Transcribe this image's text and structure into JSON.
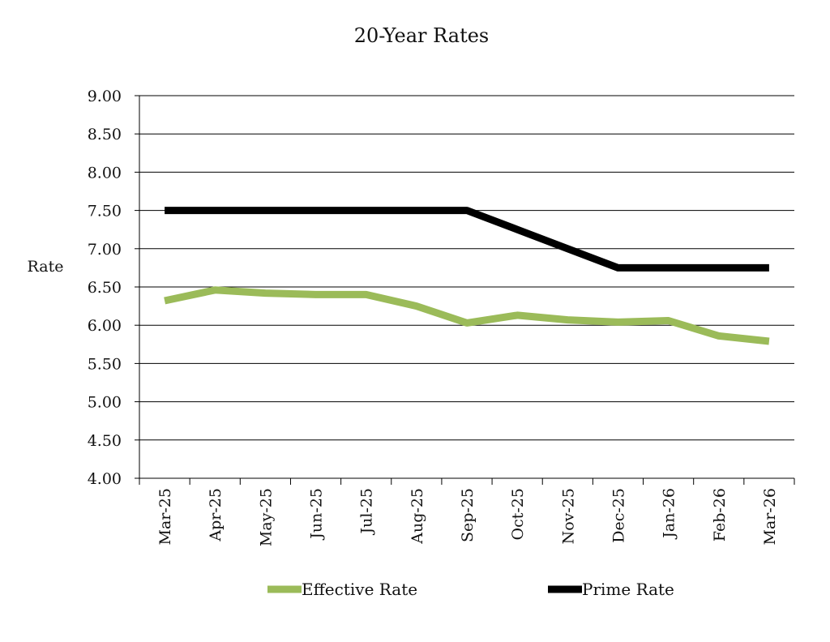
{
  "chart_data": {
    "type": "line",
    "title": "20-Year Rates",
    "ylabel": "Rate",
    "xlabel": "",
    "categories": [
      "Mar-25",
      "Apr-25",
      "May-25",
      "Jun-25",
      "Jul-25",
      "Aug-25",
      "Sep-25",
      "Oct-25",
      "Nov-25",
      "Dec-25",
      "Jan-26",
      "Feb-26",
      "Mar-26"
    ],
    "ylim": [
      4.0,
      9.0
    ],
    "yticks": [
      "4.00",
      "4.50",
      "5.00",
      "5.50",
      "6.00",
      "6.50",
      "7.00",
      "7.50",
      "8.00",
      "8.50",
      "9.00"
    ],
    "grid": true,
    "legend_position": "bottom",
    "series": [
      {
        "name": "Effective Rate",
        "color": "#9bbb59",
        "values": [
          6.32,
          6.46,
          6.42,
          6.4,
          6.4,
          6.25,
          6.03,
          6.13,
          6.07,
          6.04,
          6.06,
          5.86,
          5.79
        ]
      },
      {
        "name": "Prime Rate",
        "color": "#000000",
        "values": [
          7.5,
          7.5,
          7.5,
          7.5,
          7.5,
          7.5,
          7.5,
          7.25,
          7.0,
          6.75,
          6.75,
          6.75,
          6.75
        ]
      }
    ]
  }
}
